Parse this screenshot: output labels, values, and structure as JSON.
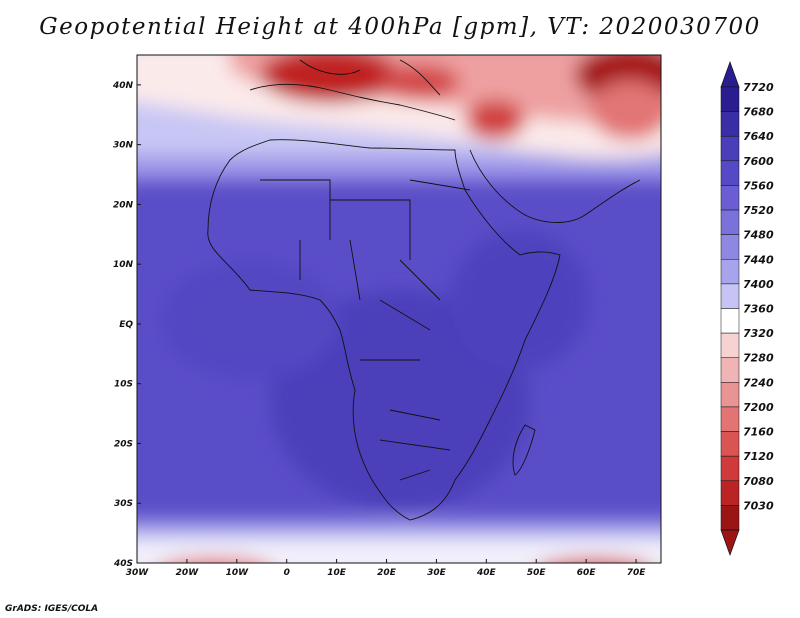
{
  "title": "Geopotential Height at 400hPa [gpm], VT: 2020030700",
  "credit": "GrADS: IGES/COLA",
  "map": {
    "projection": "lat-lon",
    "lon_range": [
      -30,
      75
    ],
    "lat_range": [
      -40,
      45
    ],
    "lon_ticks": [
      "30W",
      "20W",
      "10W",
      "0",
      "10E",
      "20E",
      "30E",
      "40E",
      "50E",
      "60E",
      "70E"
    ],
    "lat_ticks": [
      "40N",
      "30N",
      "20N",
      "10N",
      "EQ",
      "10S",
      "20S",
      "30S",
      "40S"
    ],
    "field": "Geopotential Height",
    "level": "400hPa",
    "units": "gpm",
    "valid_time": "2020030700"
  },
  "colorbar": {
    "labels": [
      "7720",
      "7680",
      "7640",
      "7600",
      "7560",
      "7520",
      "7480",
      "7440",
      "7400",
      "7360",
      "7320",
      "7280",
      "7240",
      "7200",
      "7160",
      "7120",
      "7080",
      "7030"
    ],
    "colors": [
      "#2a1d8f",
      "#3a2ea6",
      "#4a3fb8",
      "#5649c6",
      "#6a5ed2",
      "#7a72da",
      "#8e88e2",
      "#a8a4ec",
      "#c6c4f4",
      "#ffffff",
      "#f6d2d2",
      "#f0b4b4",
      "#e89494",
      "#e27474",
      "#da5454",
      "#d03a3a",
      "#bb2424",
      "#9c1515"
    ]
  }
}
